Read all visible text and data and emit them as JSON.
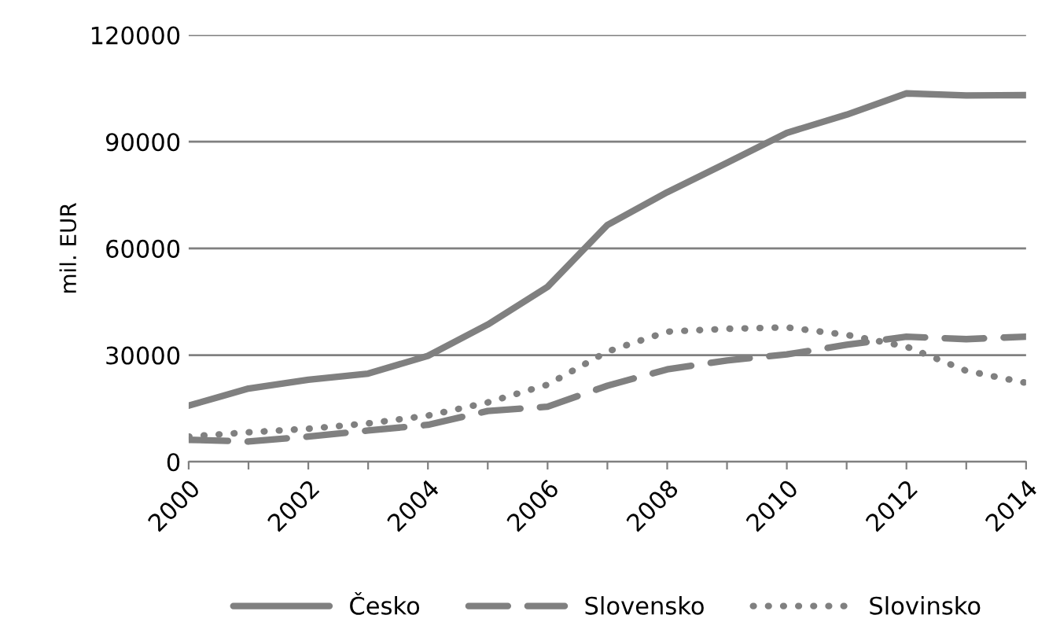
{
  "chart_data": {
    "type": "line",
    "ylabel": "mil. EUR",
    "x": [
      2000,
      2001,
      2002,
      2003,
      2004,
      2005,
      2006,
      2007,
      2008,
      2009,
      2010,
      2011,
      2012,
      2013,
      2014
    ],
    "series": [
      {
        "name": "Česko",
        "color": "#808080",
        "line_style": "solid",
        "values": [
          15800,
          20600,
          23100,
          24800,
          29800,
          38600,
          49200,
          66600,
          75800,
          84100,
          92500,
          97600,
          103600,
          103000,
          103100
        ]
      },
      {
        "name": "Slovensko",
        "color": "#808080",
        "line_style": "dashed",
        "values": [
          6200,
          5700,
          7100,
          8800,
          10400,
          14300,
          15500,
          21400,
          26000,
          28500,
          30200,
          32900,
          35200,
          34500,
          35200
        ]
      },
      {
        "name": "Slovinsko",
        "color": "#808080",
        "line_style": "dotted",
        "values": [
          7100,
          8300,
          9300,
          10800,
          13000,
          16700,
          21700,
          31000,
          36600,
          37400,
          37800,
          35700,
          32400,
          25600,
          22200
        ]
      }
    ],
    "xlim": [
      2000,
      2014
    ],
    "xticks": [
      2000,
      {
        "value": 2001,
        "label": null
      },
      2002,
      {
        "value": 2003,
        "label": null
      },
      2004,
      {
        "value": 2005,
        "label": null
      },
      2006,
      {
        "value": 2007,
        "label": null
      },
      2008,
      {
        "value": 2009,
        "label": null
      },
      2010,
      {
        "value": 2011,
        "label": null
      },
      2012,
      {
        "value": 2013,
        "label": null
      },
      2014
    ],
    "ylim": [
      0,
      120000
    ],
    "yticks": [
      0,
      30000,
      60000,
      90000,
      120000
    ],
    "grid": "y",
    "legend": "bottom",
    "marker": "none"
  }
}
